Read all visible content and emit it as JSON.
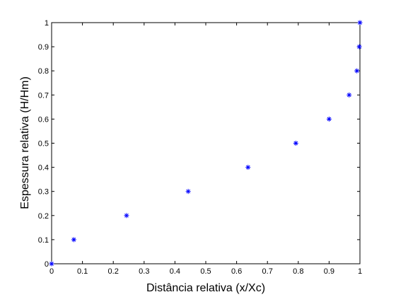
{
  "chart_data": {
    "type": "scatter",
    "xlabel": "Distância relativa (x/Xc)",
    "ylabel": "Espessura relativa (H/Hm)",
    "xlim": [
      0,
      1
    ],
    "ylim": [
      0,
      1
    ],
    "xticks": [
      "0",
      "0.1",
      "0.2",
      "0.3",
      "0.4",
      "0.5",
      "0.6",
      "0.7",
      "0.8",
      "0.9",
      "1"
    ],
    "yticks": [
      "0",
      "0.1",
      "0.2",
      "0.3",
      "0.4",
      "0.5",
      "0.6",
      "0.7",
      "0.8",
      "0.9",
      "1"
    ],
    "grid": false,
    "marker": "asterisk",
    "marker_color": "#0000ff",
    "series": [
      {
        "x": [
          0,
          0.072,
          0.243,
          0.443,
          0.637,
          0.792,
          0.9,
          0.965,
          0.99,
          0.998,
          1.0
        ],
        "y": [
          0,
          0.1,
          0.2,
          0.3,
          0.4,
          0.5,
          0.6,
          0.7,
          0.8,
          0.9,
          1.0
        ]
      }
    ]
  }
}
